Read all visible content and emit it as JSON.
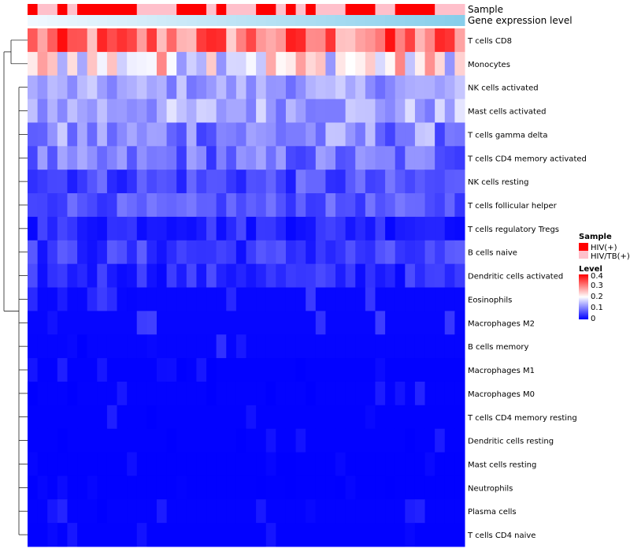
{
  "chart_data": {
    "type": "heatmap",
    "title": "",
    "annotation_tracks": [
      "Sample",
      "Gene expression level"
    ],
    "rows": [
      "T cells CD8",
      "Monocytes",
      "NK cells activated",
      "Mast cells activated",
      "T cells gamma delta",
      "T cells CD4 memory activated",
      "NK cells resting",
      "T cells follicular helper",
      "T cells regulatory  Tregs",
      "B cells naive",
      "Dendritic cells activated",
      "Eosinophils",
      "Macrophages M2",
      "B cells memory",
      "Macrophages M1",
      "Macrophages M0",
      "T cells CD4 memory resting",
      "Dendritic cells resting",
      "Mast cells resting",
      "Neutrophils",
      "Plasma cells",
      "T cells CD4 naive"
    ],
    "n_columns": 44,
    "sample_groups": [
      "HIV(+)",
      "HIV/TB(+)"
    ],
    "sample_group_colors": [
      "#ff0000",
      "#ffc0cb"
    ],
    "sample_pattern": [
      0,
      1,
      1,
      0,
      1,
      0,
      0,
      0,
      0,
      0,
      0,
      1,
      1,
      1,
      1,
      0,
      0,
      0,
      1,
      0,
      1,
      1,
      1,
      0,
      0,
      1,
      0,
      1,
      0,
      1,
      1,
      1,
      0,
      0,
      0,
      1,
      1,
      0,
      0,
      0,
      0,
      1,
      1,
      1
    ],
    "level_legend": {
      "title": "Level",
      "ticks": [
        "0.4",
        "0.3",
        "0.2",
        "0.1",
        "0"
      ],
      "range": [
        0,
        0.42
      ]
    },
    "sample_legend_title": "Sample",
    "row_means": [
      0.32,
      0.22,
      0.13,
      0.14,
      0.11,
      0.09,
      0.06,
      0.07,
      0.035,
      0.045,
      0.035,
      0.03,
      0.025,
      0.02,
      0.01,
      0.012,
      0.008,
      0.008,
      0.004,
      0.003,
      0.012,
      0.008
    ],
    "row_spreads": [
      0.09,
      0.1,
      0.04,
      0.05,
      0.06,
      0.05,
      0.04,
      0.03,
      0.03,
      0.035,
      0.03,
      0.03,
      0.03,
      0.025,
      0.02,
      0.02,
      0.02,
      0.02,
      0.01,
      0.008,
      0.025,
      0.02
    ],
    "scale_colors": {
      "low": "#0000ff",
      "mid": "#ffffff",
      "high": "#ff0000",
      "mid_value": 0.21
    },
    "gene_expression_colors": [
      "#f0f8ff",
      "#87ceeb"
    ]
  }
}
